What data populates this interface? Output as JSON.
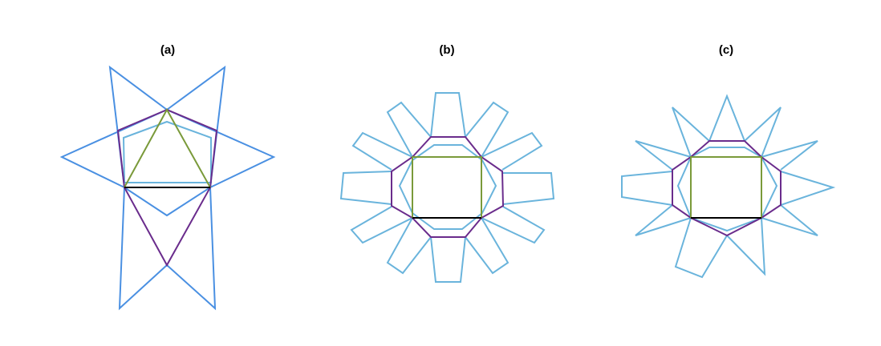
{
  "figure": {
    "panels": [
      {
        "id": "a",
        "label": "(a)"
      },
      {
        "id": "b",
        "label": "(b)"
      },
      {
        "id": "c",
        "label": "(c)"
      }
    ]
  },
  "colors": {
    "star_blue": "#4a90e2",
    "outline_light_blue": "#6ab4dc",
    "purple": "#6a2c8c",
    "green": "#7a9a3a",
    "black": "#000000"
  }
}
